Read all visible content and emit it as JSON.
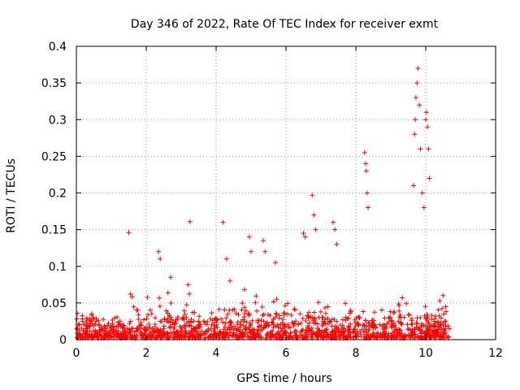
{
  "chart_data": {
    "type": "scatter",
    "title": "Day 346 of 2022, Rate Of TEC Index for receiver exmt",
    "xlabel": "GPS time / hours",
    "ylabel": "ROTI / TECUs",
    "xlim": [
      0,
      12
    ],
    "ylim": [
      0,
      0.4
    ],
    "x_ticks": [
      0,
      2,
      4,
      6,
      8,
      10,
      12
    ],
    "y_ticks": [
      0,
      0.05,
      0.1,
      0.15,
      0.2,
      0.25,
      0.3,
      0.35,
      0.4
    ],
    "x_tick_labels": [
      "0",
      "2",
      "4",
      "6",
      "8",
      "10",
      "12"
    ],
    "y_tick_labels": [
      "0",
      "0.05",
      "0.1",
      "0.15",
      "0.2",
      "0.25",
      "0.3",
      "0.35",
      "0.4"
    ],
    "grid": true,
    "marker": "+",
    "marker_color": "#ff0000",
    "series": [
      {
        "name": "ROTI",
        "x": [
          1.5,
          3.25,
          4.2,
          6.75,
          6.8,
          6.85,
          7.35,
          7.4,
          7.45,
          8.25,
          8.28,
          8.3,
          8.32,
          8.35,
          9.65,
          9.68,
          9.7,
          9.72,
          9.75,
          9.78,
          9.82,
          9.85,
          9.9,
          9.95,
          10.0,
          10.02,
          10.05,
          10.08,
          10.1,
          2.35,
          2.4,
          2.7,
          3.2,
          4.3,
          4.4,
          4.95,
          5.0,
          5.35,
          5.4,
          5.7,
          6.5,
          6.55,
          1.55,
          1.6
        ],
        "y": [
          0.146,
          0.161,
          0.16,
          0.197,
          0.17,
          0.15,
          0.16,
          0.15,
          0.13,
          0.255,
          0.24,
          0.23,
          0.2,
          0.18,
          0.21,
          0.28,
          0.3,
          0.33,
          0.35,
          0.37,
          0.32,
          0.26,
          0.2,
          0.18,
          0.3,
          0.31,
          0.29,
          0.26,
          0.22,
          0.12,
          0.11,
          0.085,
          0.075,
          0.11,
          0.08,
          0.14,
          0.12,
          0.135,
          0.12,
          0.105,
          0.145,
          0.14,
          0.062,
          0.058
        ],
        "background_band": {
          "x_range": [
            0,
            10.7
          ],
          "typical_ymax": 0.03,
          "description": "dense cluster of small ROTI values between 0 and about 0.03"
        }
      }
    ]
  }
}
